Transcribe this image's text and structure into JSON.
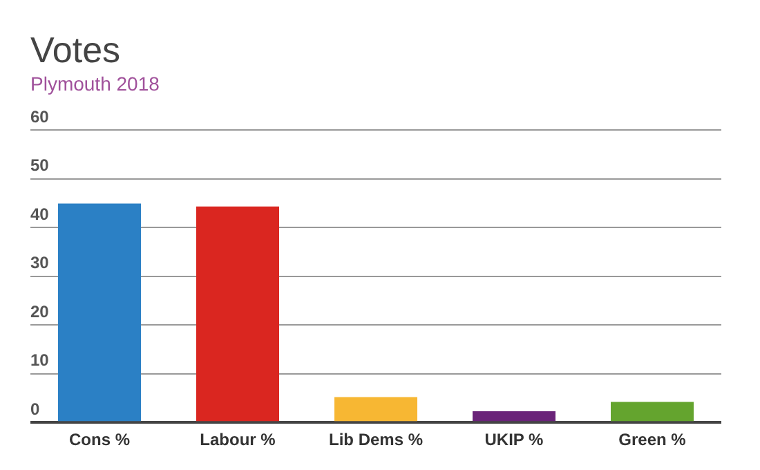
{
  "chart_data": {
    "type": "bar",
    "title": "Votes",
    "subtitle": "Plymouth 2018",
    "categories": [
      "Cons %",
      "Labour %",
      "Lib Dems %",
      "UKIP %",
      "Green %"
    ],
    "values": [
      44.9,
      44.3,
      5.2,
      2.3,
      4.2
    ],
    "colors": [
      "#2b80c5",
      "#da2620",
      "#f7b733",
      "#6a2379",
      "#64a42e"
    ],
    "ylim": [
      0,
      60
    ],
    "yticks": [
      0,
      10,
      20,
      30,
      40,
      50,
      60
    ],
    "grid": "y"
  }
}
